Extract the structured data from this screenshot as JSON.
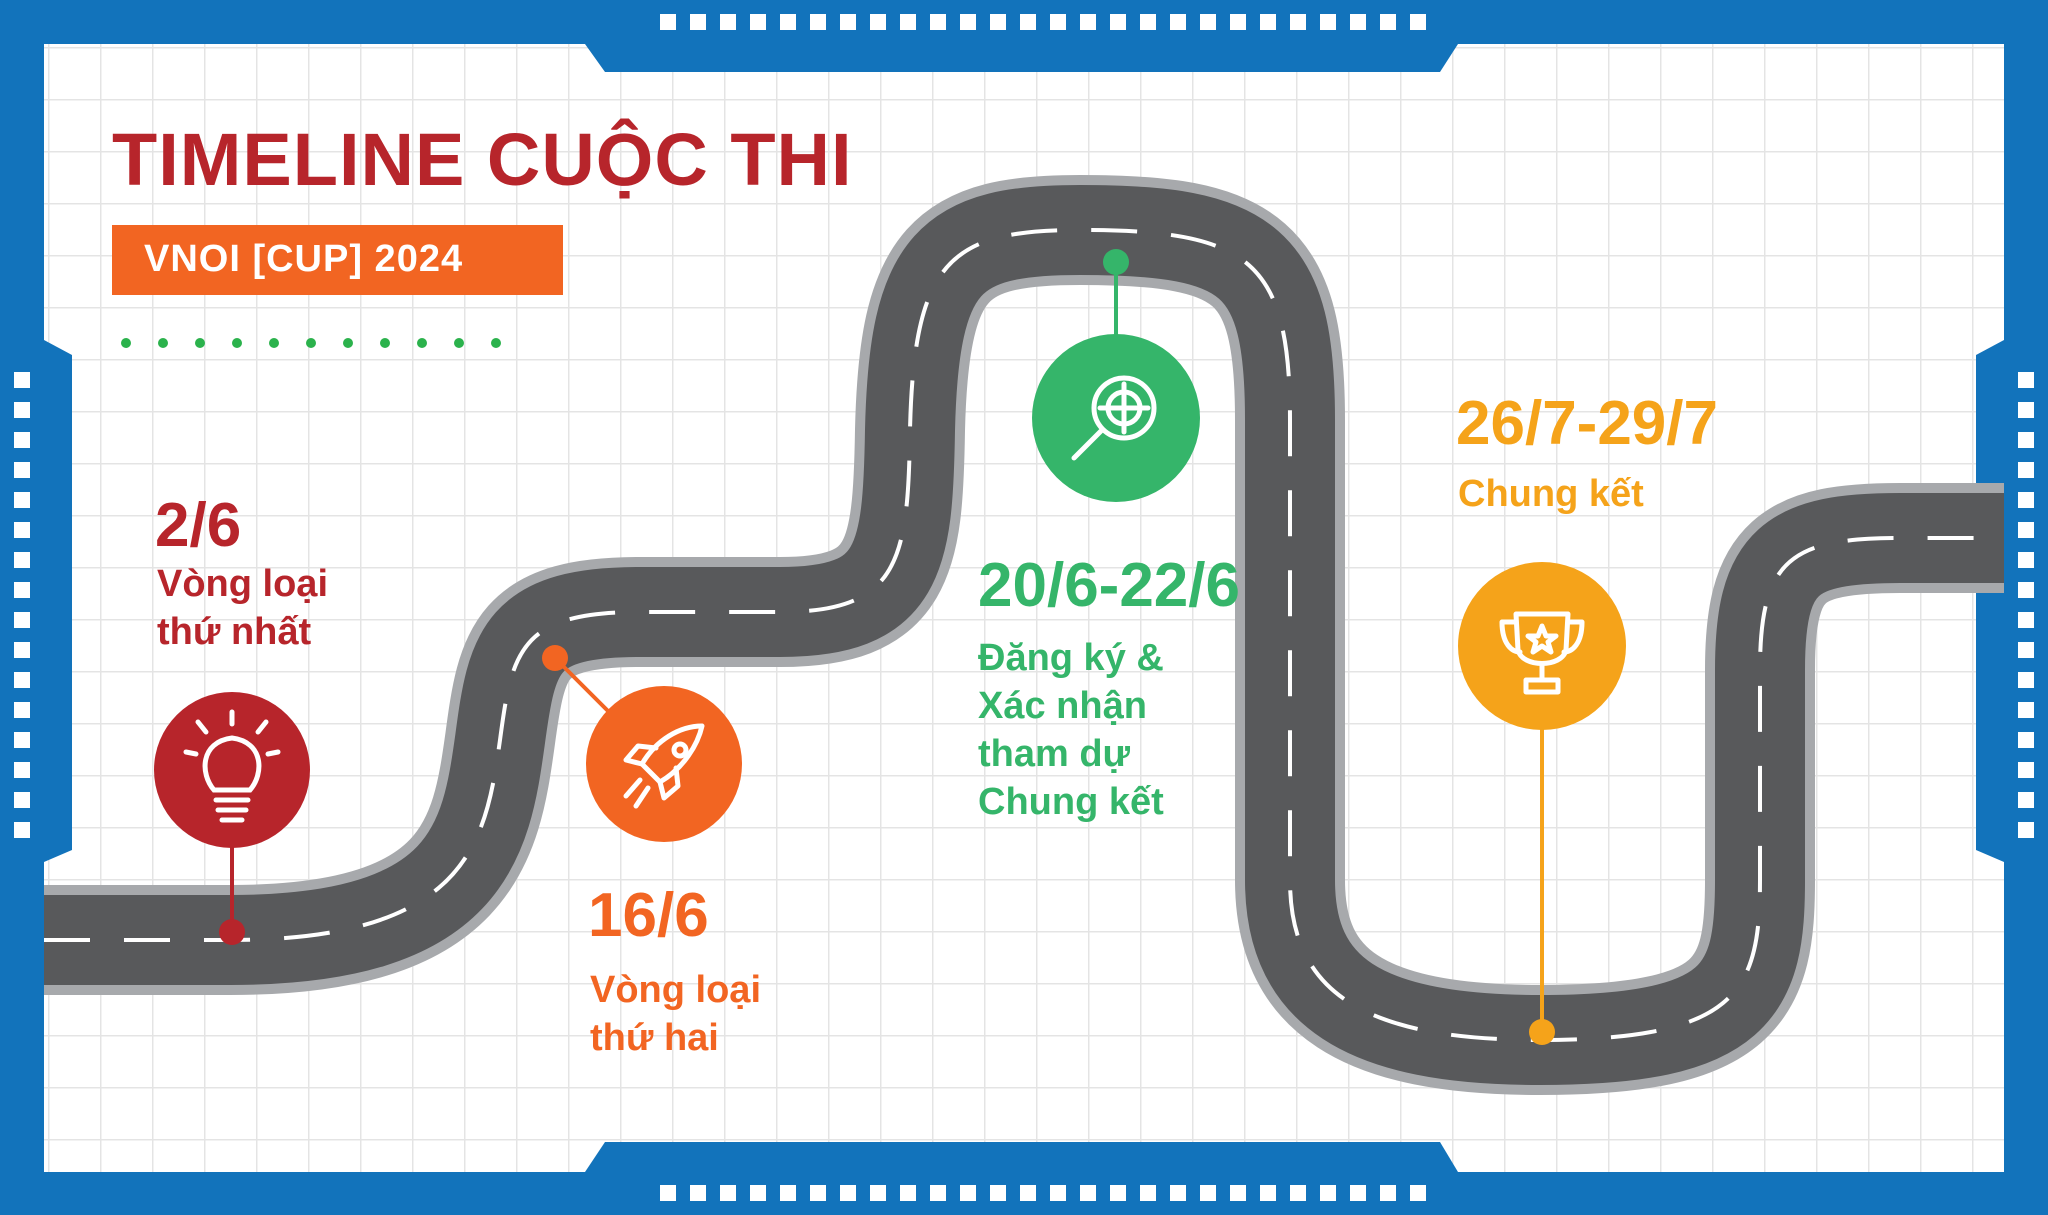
{
  "title": "TIMELINE CUỘC THI",
  "subtitle": "VNOI [CUP] 2024",
  "colors": {
    "frame": "#1273bb",
    "title": "#b7252b",
    "badge": "#f26522",
    "road": "#58595b",
    "road_edge": "#a7a9ac",
    "dots": "#2bb24c"
  },
  "milestones": [
    {
      "date": "2/6",
      "description": "Vòng loại\nthứ nhất",
      "icon": "lightbulb-icon",
      "color": "#b7252b"
    },
    {
      "date": "16/6",
      "description": "Vòng loại\nthứ hai",
      "icon": "rocket-icon",
      "color": "#f26522"
    },
    {
      "date": "20/6-22/6",
      "description": "Đăng ký &\nXác nhận\ntham dự\nChung kết",
      "icon": "magnifier-target-icon",
      "color": "#35b56a"
    },
    {
      "date": "26/7-29/7",
      "description": "Chung kết",
      "icon": "trophy-icon",
      "color": "#f5a31a"
    }
  ]
}
